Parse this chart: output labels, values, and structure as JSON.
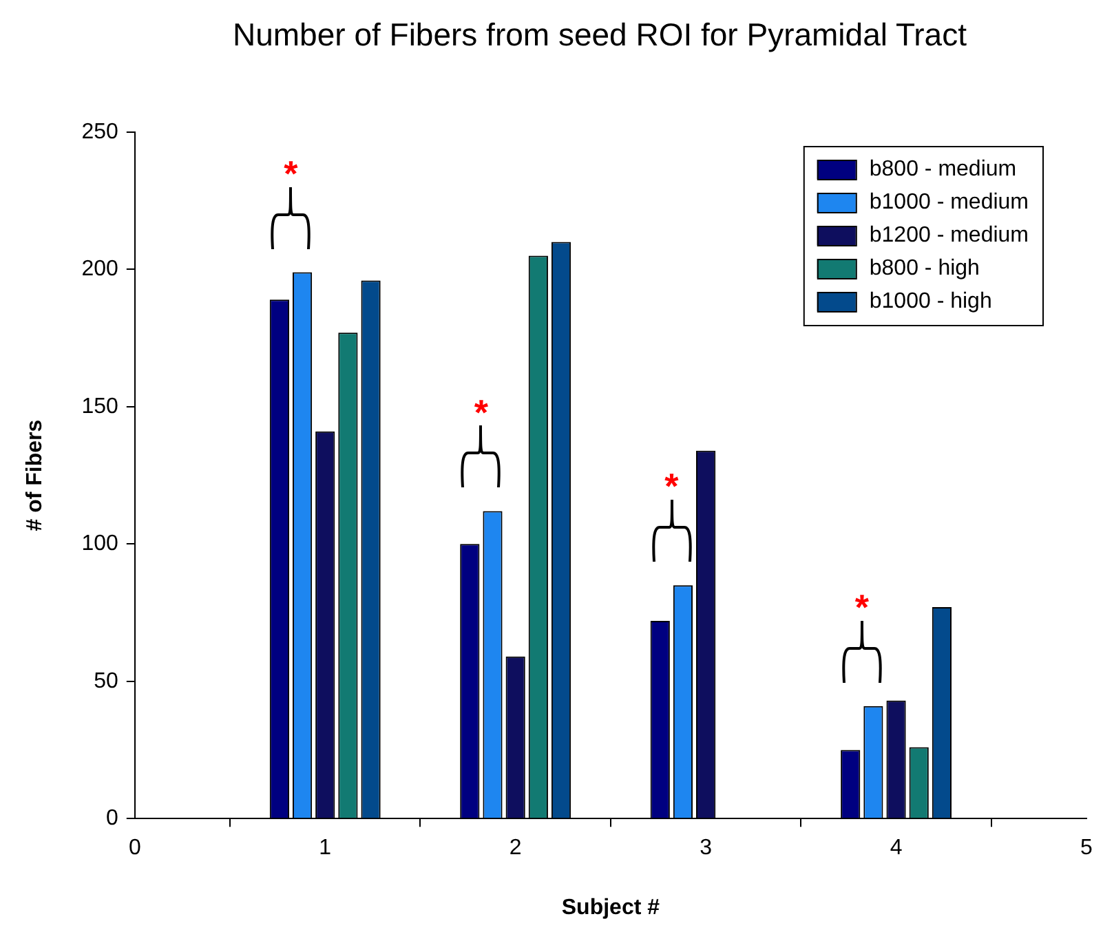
{
  "chart_data": {
    "type": "bar",
    "title": "Number of Fibers from seed ROI for Pyramidal Tract",
    "xlabel": "Subject #",
    "ylabel": "# of Fibers",
    "x": [
      1,
      2,
      3,
      4
    ],
    "series": [
      {
        "name": "b800 - medium",
        "color": "#000080",
        "values": [
          189,
          100,
          72,
          25
        ]
      },
      {
        "name": "b1000 - medium",
        "color": "#1e86f0",
        "values": [
          199,
          112,
          85,
          41
        ]
      },
      {
        "name": "b1200 - medium",
        "color": "#0e0e5e",
        "values": [
          141,
          59,
          134,
          43
        ]
      },
      {
        "name": "b800 - high",
        "color": "#127a72",
        "values": [
          177,
          205,
          null,
          26
        ]
      },
      {
        "name": "b1000 - high",
        "color": "#034a8c",
        "values": [
          196,
          210,
          null,
          77
        ]
      }
    ],
    "xlim": [
      0,
      5
    ],
    "xticks": [
      0,
      1,
      2,
      3,
      4,
      5
    ],
    "ylim": [
      0,
      250
    ],
    "yticks": [
      0,
      50,
      100,
      150,
      200,
      250
    ],
    "grid": false,
    "legend": "top right",
    "annotations": [
      "*",
      "*",
      "*",
      "*"
    ]
  }
}
